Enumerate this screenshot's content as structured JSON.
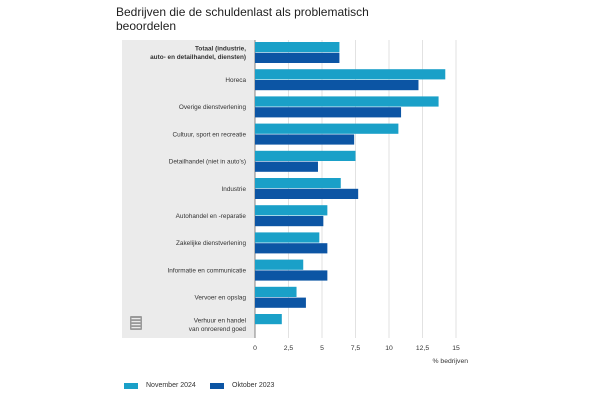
{
  "chart_data": {
    "type": "bar",
    "orientation": "horizontal",
    "title": "Bedrijven die de schuldenlast als problematisch beoordelen",
    "xlabel": "% bedrijven",
    "ylabel": "",
    "xlim": [
      0,
      15
    ],
    "x_ticks": [
      "0",
      "2,5",
      "5",
      "7,5",
      "10",
      "12,5",
      "15"
    ],
    "grid": true,
    "legend_position": "bottom-left",
    "categories": [
      [
        "Totaal (industrie,",
        "auto- en detailhandel, diensten)"
      ],
      [
        "Horeca"
      ],
      [
        "Overige dienstverlening"
      ],
      [
        "Cultuur, sport en recreatie"
      ],
      [
        "Detailhandel (niet in auto's)"
      ],
      [
        "Industrie"
      ],
      [
        "Autohandel en -reparatie"
      ],
      [
        "Zakelijke dienstverlening"
      ],
      [
        "Informatie en communicatie"
      ],
      [
        "Vervoer en opslag"
      ],
      [
        "Verhuur en handel",
        "van onroerend goed"
      ]
    ],
    "series": [
      {
        "name": "November 2024",
        "color": "#1aa0c8",
        "values": [
          6.3,
          14.2,
          13.7,
          10.7,
          7.5,
          6.4,
          5.4,
          4.8,
          3.6,
          3.1,
          2.0
        ]
      },
      {
        "name": "Oktober 2023",
        "color": "#0c55a4",
        "values": [
          6.3,
          12.2,
          10.9,
          7.4,
          4.7,
          7.7,
          5.1,
          5.4,
          5.4,
          3.8,
          null
        ]
      }
    ]
  }
}
